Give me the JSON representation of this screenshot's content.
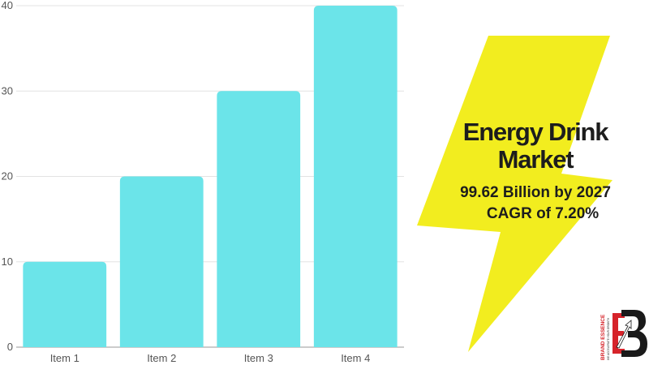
{
  "chart_data": {
    "type": "bar",
    "categories": [
      "Item 1",
      "Item 2",
      "Item 3",
      "Item 4"
    ],
    "values": [
      10,
      20,
      30,
      40
    ],
    "ylim": [
      0,
      40
    ],
    "yticks": [
      0,
      10,
      20,
      30,
      40
    ],
    "grid": true,
    "bar_color": "#6be4e9",
    "title": "",
    "xlabel": "",
    "ylabel": ""
  },
  "infographic": {
    "title_line1": "Energy Drink",
    "title_line2": "Market",
    "stat_value": "99.62 Billion by 2027",
    "stat_cagr": "CAGR of 7.20%",
    "bolt_color": "#f2ed1f"
  },
  "logo": {
    "text": "BRAND ESSENCE",
    "tagline": "WE ACCELERATE YOUR GROWTH",
    "color_red": "#d6232a",
    "color_dark": "#1a1a1a"
  }
}
